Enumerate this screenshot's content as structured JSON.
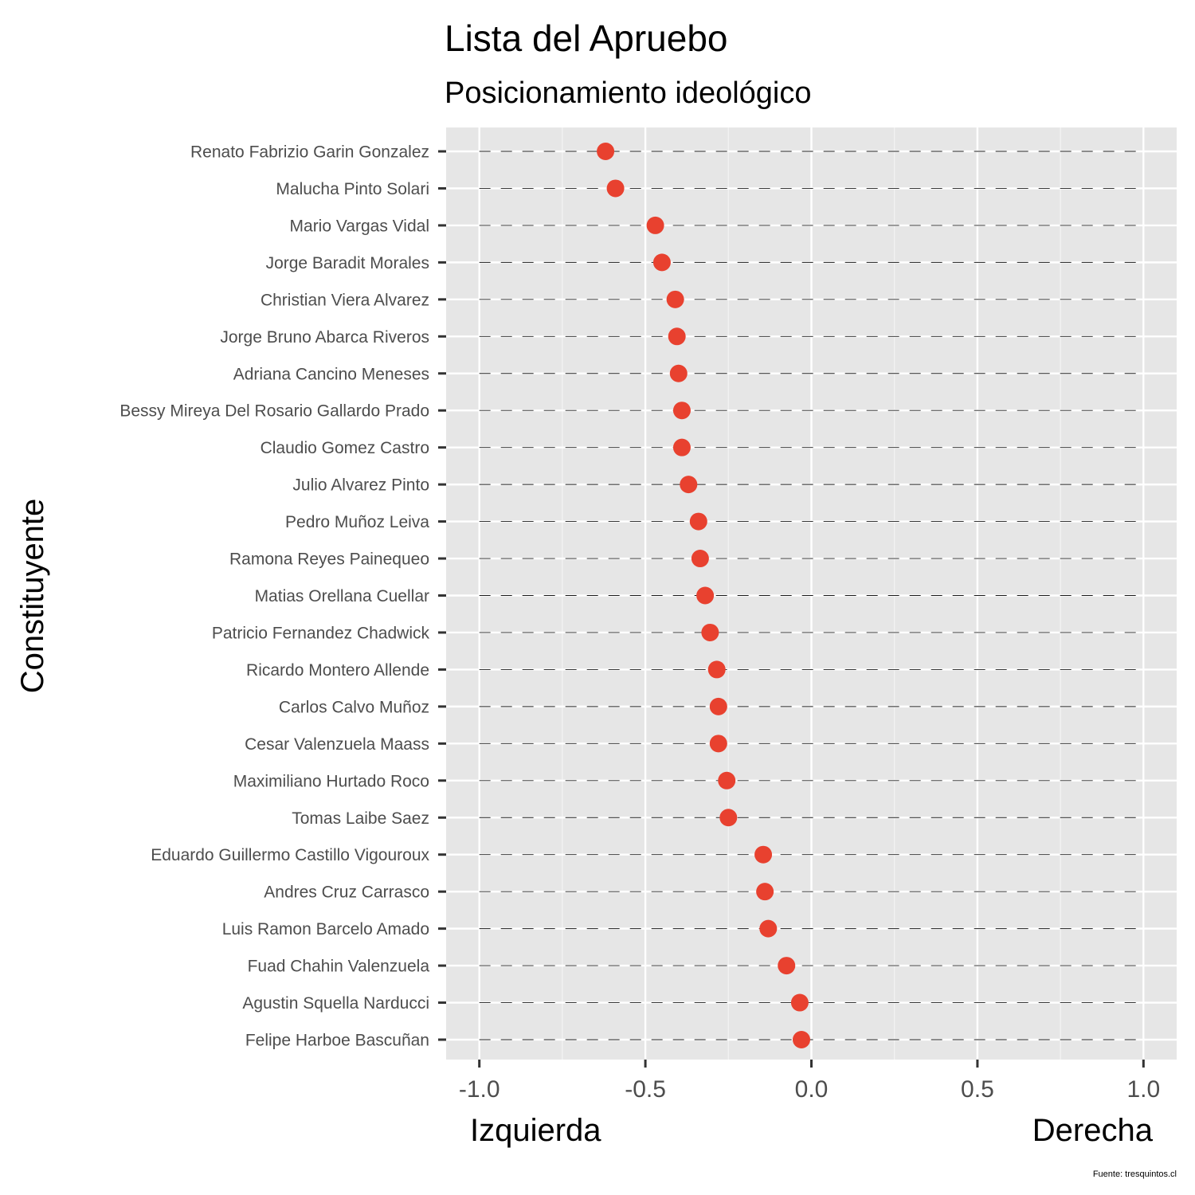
{
  "chart_data": {
    "type": "scatter",
    "title": "Lista del Apruebo",
    "subtitle": "Posicionamiento ideológico",
    "ylabel": "Constituyente",
    "xlabel_left": "Izquierda",
    "xlabel_right": "Derecha",
    "caption": "Fuente: tresquintos.cl",
    "xlim": [
      -1.1,
      1.1
    ],
    "xticks": [
      -1.0,
      -0.5,
      0.0,
      0.5,
      1.0
    ],
    "xtick_labels": [
      "-1.0",
      "-0.5",
      "0.0",
      "0.5",
      "1.0"
    ],
    "point_color": "#e8412f",
    "panel_color": "#e6e6e6",
    "grid": true,
    "categories": [
      "Renato Fabrizio Garin Gonzalez",
      "Malucha Pinto Solari",
      "Mario Vargas Vidal",
      "Jorge Baradit Morales",
      "Christian Viera Alvarez",
      "Jorge Bruno Abarca Riveros",
      "Adriana Cancino Meneses",
      "Bessy Mireya Del Rosario Gallardo Prado",
      "Claudio Gomez Castro",
      "Julio Alvarez Pinto",
      "Pedro Muñoz Leiva",
      "Ramona Reyes Painequeo",
      "Matias Orellana Cuellar",
      "Patricio Fernandez Chadwick",
      "Ricardo Montero Allende",
      "Carlos Calvo Muñoz",
      "Cesar Valenzuela Maass",
      "Maximiliano Hurtado Roco",
      "Tomas Laibe Saez",
      "Eduardo Guillermo Castillo Vigouroux",
      "Andres Cruz Carrasco",
      "Luis Ramon Barcelo Amado",
      "Fuad Chahin Valenzuela",
      "Agustin Squella Narducci",
      "Felipe Harboe Bascuñan"
    ],
    "values": [
      -0.62,
      -0.59,
      -0.47,
      -0.45,
      -0.41,
      -0.405,
      -0.4,
      -0.39,
      -0.39,
      -0.37,
      -0.34,
      -0.335,
      -0.32,
      -0.305,
      -0.285,
      -0.28,
      -0.28,
      -0.255,
      -0.25,
      -0.145,
      -0.14,
      -0.13,
      -0.075,
      -0.035,
      -0.03
    ]
  }
}
